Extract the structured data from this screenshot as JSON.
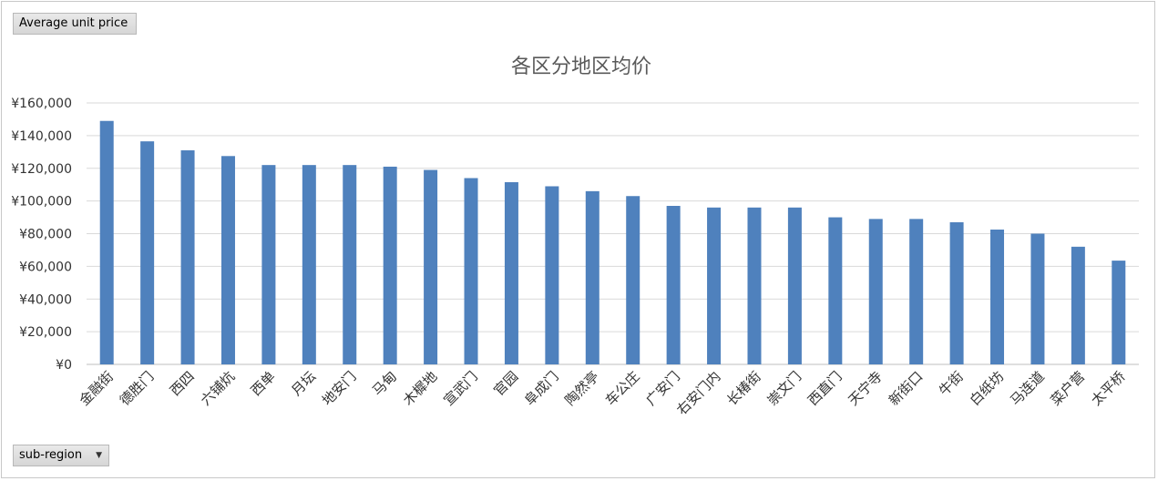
{
  "pivot": {
    "value_field_label": "Average unit price",
    "axis_field_label": "sub-region",
    "dropdown_icon": "triangle-down-icon"
  },
  "chart_data": {
    "type": "bar",
    "title": "各区分地区均价",
    "xlabel": "",
    "ylabel": "",
    "ylim": [
      0,
      160000
    ],
    "ytick_step": 20000,
    "ytick_labels": [
      "¥0",
      "¥20,000",
      "¥40,000",
      "¥60,000",
      "¥80,000",
      "¥100,000",
      "¥120,000",
      "¥140,000",
      "¥160,000"
    ],
    "grid": true,
    "legend": "none",
    "bar_color": "#4f81bd",
    "categories": [
      "金融街",
      "德胜门",
      "西四",
      "六铺炕",
      "西单",
      "月坛",
      "地安门",
      "马甸",
      "木樨地",
      "宣武门",
      "官园",
      "阜成门",
      "陶然亭",
      "车公庄",
      "广安门",
      "右安门内",
      "长椿街",
      "崇文门",
      "西直门",
      "天宁寺",
      "新街口",
      "牛街",
      "白纸坊",
      "马连道",
      "菜户营",
      "太平桥"
    ],
    "values": [
      149000,
      136500,
      131000,
      127500,
      122000,
      122000,
      122000,
      121000,
      119000,
      114000,
      111500,
      109000,
      106000,
      103000,
      97000,
      96000,
      96000,
      96000,
      90000,
      89000,
      89000,
      87000,
      82500,
      80000,
      72000,
      63500
    ]
  }
}
